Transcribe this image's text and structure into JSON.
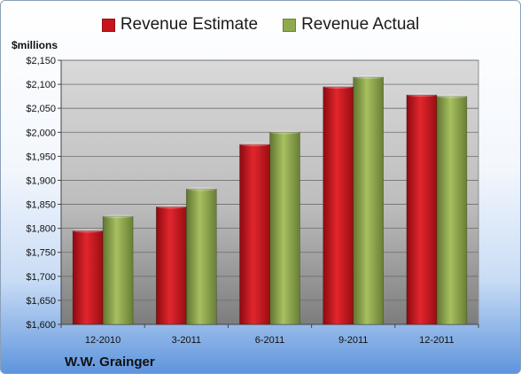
{
  "chart_data": {
    "type": "bar",
    "title": "",
    "unit_label": "$millions",
    "categories": [
      "12-2010",
      "3-2011",
      "6-2011",
      "9-2011",
      "12-2011"
    ],
    "series": [
      {
        "name": "Revenue Estimate",
        "color": "#c8141c",
        "values": [
          1795,
          1845,
          1975,
          2095,
          2078
        ]
      },
      {
        "name": "Revenue Actual",
        "color": "#8faa4c",
        "values": [
          1825,
          1882,
          2000,
          2115,
          2075
        ]
      }
    ],
    "ylim": [
      1600,
      2150
    ],
    "yticks": [
      1600,
      1650,
      1700,
      1750,
      1800,
      1850,
      1900,
      1950,
      2000,
      2050,
      2100,
      2150
    ],
    "ytick_labels": [
      "$1,600",
      "$1,650",
      "$1,700",
      "$1,750",
      "$1,800",
      "$1,850",
      "$1,900",
      "$1,950",
      "$2,000",
      "$2,050",
      "$2,100",
      "$2,150"
    ],
    "grid": true,
    "legend_position": "top-center"
  },
  "company_label": "W.W. Grainger"
}
